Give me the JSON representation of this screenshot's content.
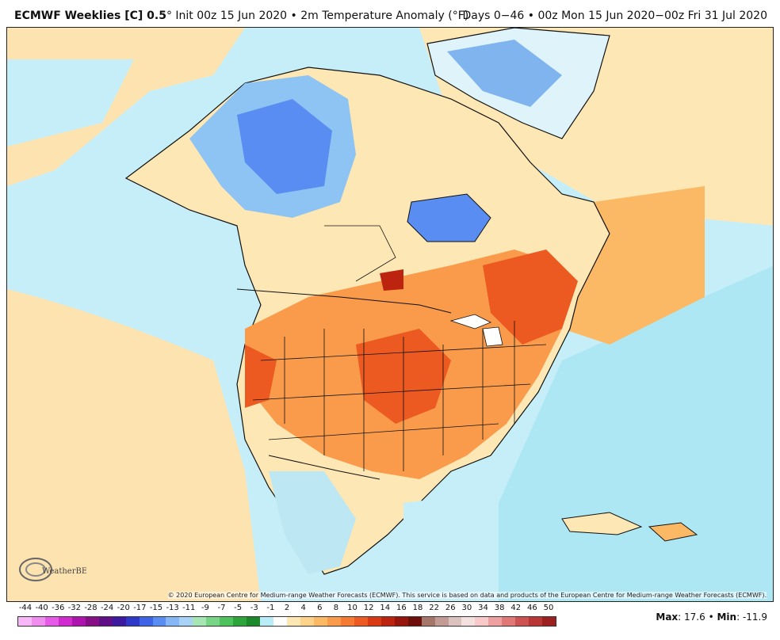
{
  "header": {
    "model": "ECMWF Weeklies [C] 0.5",
    "degree": "°",
    "init": "Init 00z 15 Jun 2020",
    "bullet": "•",
    "field": "2m Temperature Anomaly (°F)",
    "valid": "Days 0−46 • 00z Mon 15 Jun 2020−00z Fri 31 Jul 2020"
  },
  "map": {
    "region": "North America",
    "logo_text": "WeatherBELL",
    "copyright": "© 2020 European Centre for Medium-range Weather Forecasts (ECMWF). This service is based on data and products of the European Centre for Medium-range Weather Forecasts (ECMWF)."
  },
  "colorbar": {
    "labels": [
      "-44",
      "-40",
      "-36",
      "-32",
      "-28",
      "-24",
      "-20",
      "-17",
      "-15",
      "-13",
      "-11",
      "-9",
      "-7",
      "-5",
      "-3",
      "-1",
      "2",
      "4",
      "6",
      "8",
      "10",
      "12",
      "14",
      "16",
      "18",
      "22",
      "26",
      "30",
      "34",
      "38",
      "42",
      "46",
      "50"
    ],
    "colors": [
      "#f7b6f7",
      "#f08ef0",
      "#e55ae6",
      "#cf2bcf",
      "#ad13ad",
      "#860f86",
      "#5f0f85",
      "#3b1aa0",
      "#2d39c6",
      "#3f63e6",
      "#5a8df2",
      "#86b6f5",
      "#a9d2f7",
      "#a6e6b5",
      "#78d585",
      "#4ec25c",
      "#2ea53b",
      "#1c8a2a",
      "#b8ecf6",
      "#ffffff",
      "#fde7b4",
      "#fdd28a",
      "#fbb865",
      "#f99b4b",
      "#f57b32",
      "#ec5a21",
      "#d93a14",
      "#bd2410",
      "#96150d",
      "#6e0f0b",
      "#a5766a",
      "#c29c94",
      "#dcc2be",
      "#f2e1df",
      "#f7c9c9",
      "#ee9f9f",
      "#e07878",
      "#cd5353",
      "#b83636",
      "#9d2020"
    ]
  },
  "stats": {
    "max_label": "Max",
    "max_value": "17.6",
    "min_label": "Min",
    "min_value": "-11.9",
    "separator": "•"
  }
}
